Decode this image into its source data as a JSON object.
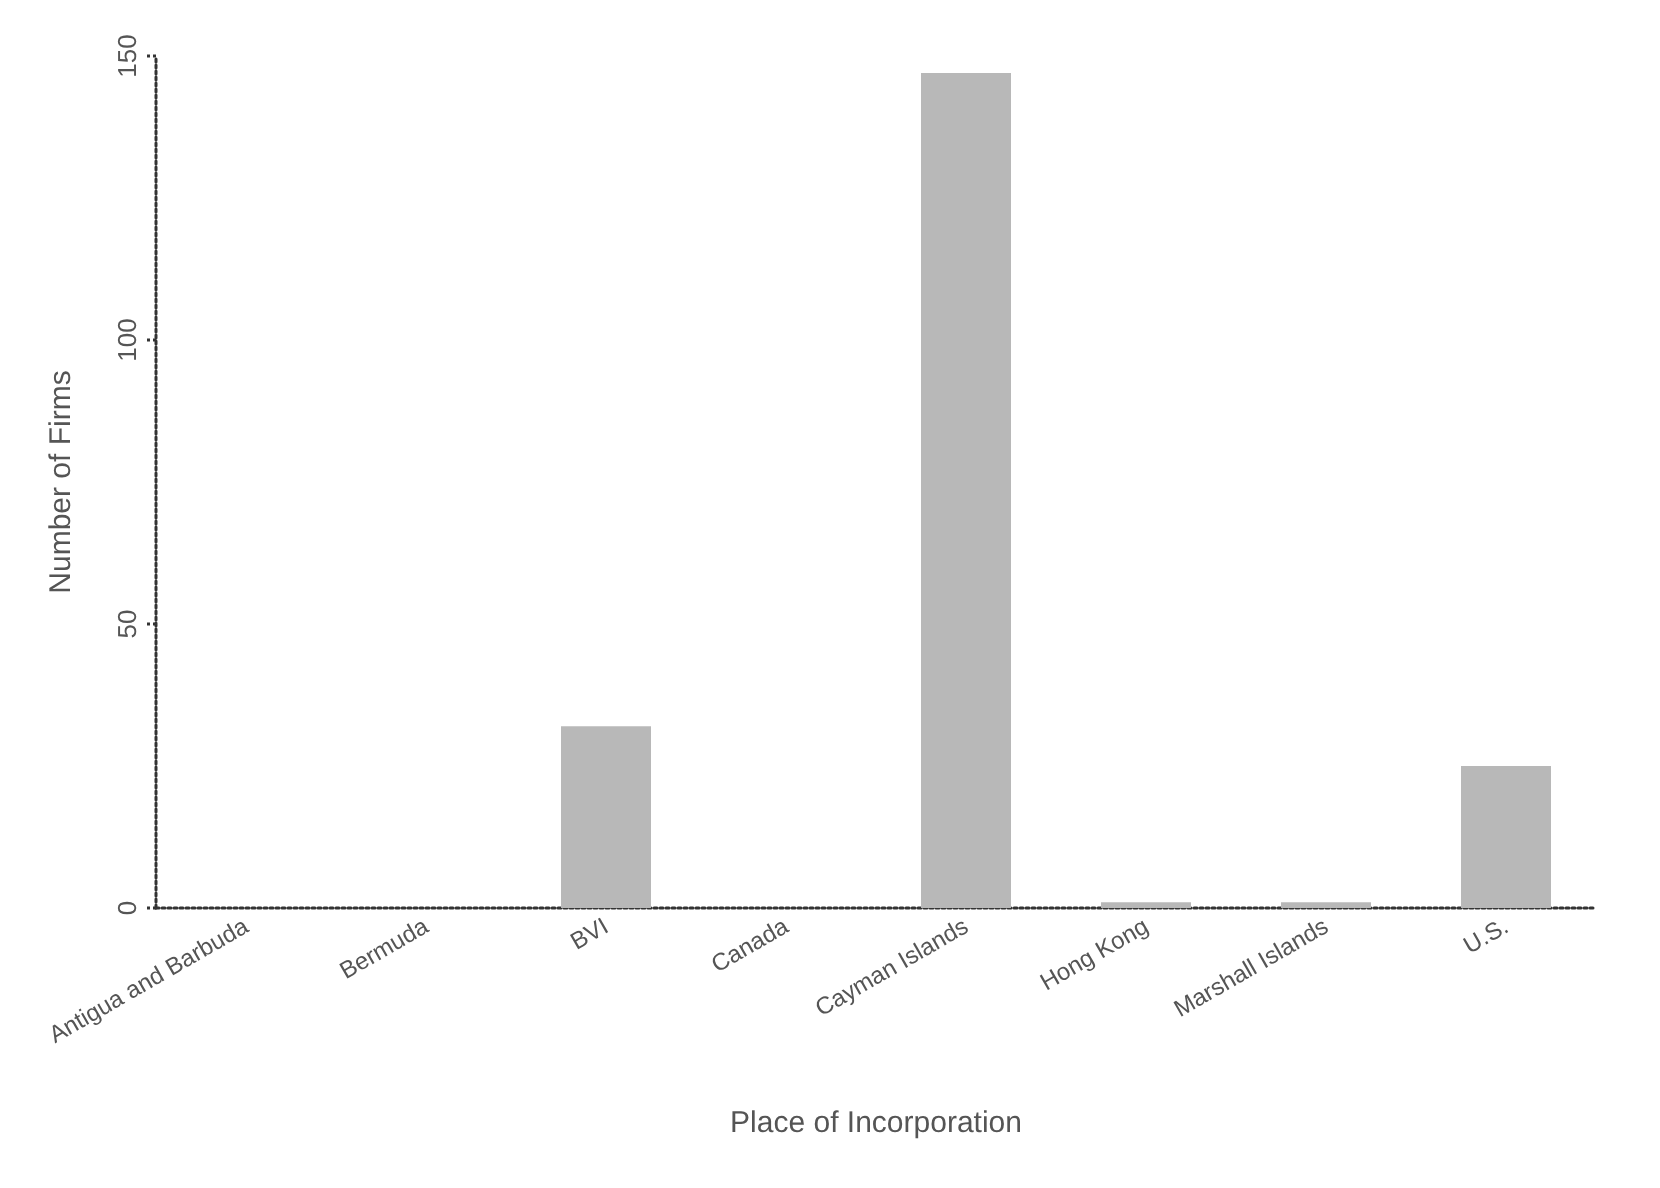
{
  "chart_data": {
    "type": "bar",
    "xlabel": "Place of Incorporation",
    "ylabel": "Number of Firms",
    "categories": [
      "Antigua and Barbuda",
      "Bermuda",
      "BVI",
      "Canada",
      "Cayman Islands",
      "Hong Kong",
      "Marshall Islands",
      "U.S."
    ],
    "values": [
      0,
      0,
      32,
      0,
      147,
      1,
      1,
      25
    ],
    "color": "#b8b8b8",
    "ylim": [
      0,
      150
    ],
    "yticks": [
      0,
      50,
      100,
      150
    ],
    "grid": false
  }
}
